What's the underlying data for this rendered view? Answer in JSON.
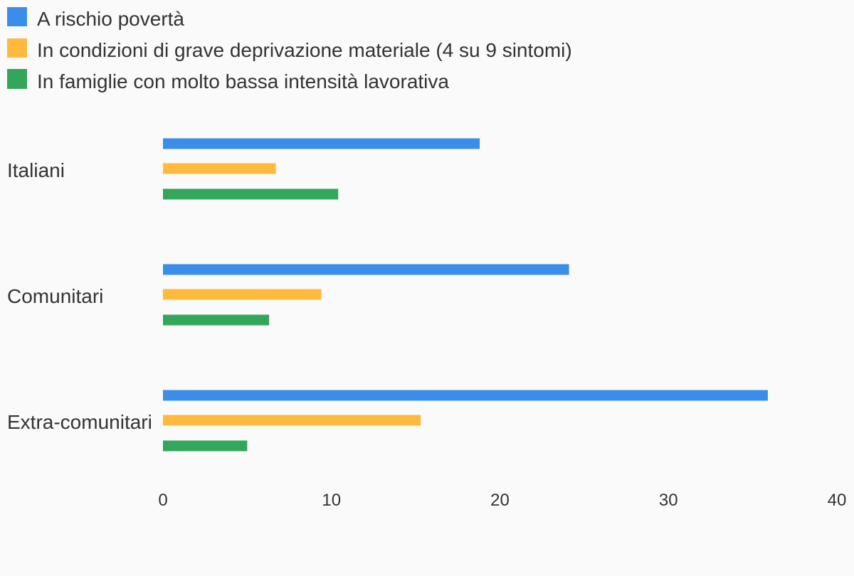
{
  "chart_data": {
    "type": "bar",
    "orientation": "horizontal",
    "categories": [
      "Italiani",
      "Comunitari",
      "Extra-comunitari"
    ],
    "series": [
      {
        "name": "A rischio povertà",
        "color": "#3a8ee9",
        "values": [
          18.8,
          24.1,
          35.9
        ]
      },
      {
        "name": "In condizioni di grave deprivazione materiale (4 su 9 sintomi)",
        "color": "#ffb93d",
        "values": [
          6.7,
          9.4,
          15.3
        ]
      },
      {
        "name": "In famiglie con molto bassa intensità lavorativa",
        "color": "#34a65b",
        "values": [
          10.4,
          6.3,
          5.0
        ]
      }
    ],
    "xlim": [
      0,
      40
    ],
    "xticks": [
      "0",
      "10",
      "20",
      "30",
      "40"
    ],
    "legend_position": "top-left",
    "grid": false
  }
}
